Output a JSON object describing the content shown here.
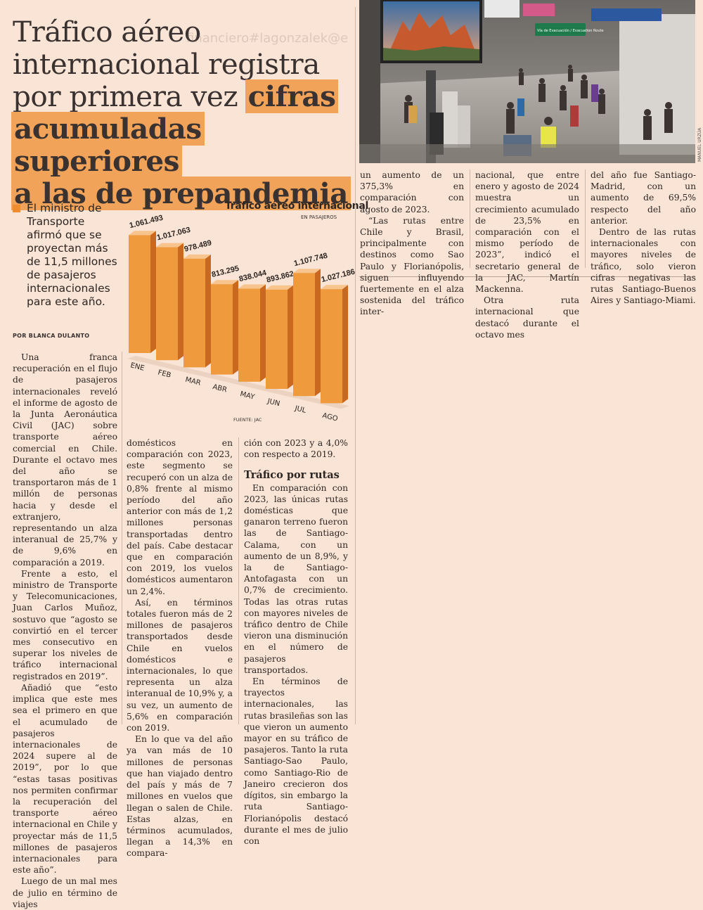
{
  "headline": {
    "plain": "Tráfico aéreo internacional registra por primera vez ",
    "highlight_1": "cifras",
    "highlight_2": "acumuladas superiores",
    "highlight_3": "a las de prepandemia"
  },
  "watermark": "financiero#lagonzalek@e",
  "summary": "El ministro de Transporte afirmó que se proyectan más de 11,5 millones de pasajeros internacionales para este año.",
  "byline": "POR BLANCA DULANTO",
  "photo_credit": "MANUEL URZÚA",
  "photo_signs": [
    "Vía de Evacuación / Evacuation Route"
  ],
  "chart_data": {
    "type": "bar",
    "title": "Tráfico aéreo internacional",
    "subtitle": "EN PASAJEROS",
    "source": "FUENTE: JAC",
    "categories": [
      "ENE",
      "FEB",
      "MAR",
      "ABR",
      "MAY",
      "JUN",
      "JUL",
      "AGO"
    ],
    "values": [
      1061493,
      1017063,
      978489,
      813295,
      838044,
      893862,
      1107748,
      1027186
    ],
    "value_labels": [
      "1.061.493",
      "1.017.063",
      "978.489",
      "813.295",
      "838.044",
      "893.862",
      "1.107.748",
      "1.027.186"
    ],
    "bar_color": "#f09a3e"
  },
  "column1": [
    "Una franca recuperación en el flujo de pasajeros internacionales reveló el informe de agosto de la Junta Aeronáutica Civil (JAC) sobre transporte aéreo comercial en Chile. Durante el octavo mes del año se transportaron más de 1 millón de personas hacia y desde el extranjero, representando un alza interanual de 25,7% y de 9,6% en comparación a 2019.",
    "Frente a esto, el ministro de Transporte y Telecomunicaciones, Juan Carlos Muñoz, sostuvo que “agosto se convirtió en el tercer mes consecutivo en superar los niveles de tráfico internacional registrados en 2019”.",
    "Añadió que “esto implica que este mes sea el primero en que el acumulado de pasajeros internacionales de 2024 supere al de 2019”, por lo que “estas tasas positivas nos permiten confirmar la recuperación del transporte aéreo internacional en Chile y proyectar más de 11,5 millones de pasajeros internacionales para este año”.",
    "Luego de un mal mes de julio en término de viajes"
  ],
  "column2": [
    "domésticos en comparación con 2023, este segmento se recuperó con un alza de 0,8% frente al mismo período del año anterior con más de 1,2 millones personas transportadas dentro del país. Cabe destacar que en comparación con 2019, los vuelos domésticos aumentaron un 2,4%.",
    "Así, en términos totales fueron más de 2 millones de pasajeros transportados desde Chile en vuelos domésticos e internacionales, lo que representa un alza interanual de 10,9% y, a su vez, un aumento de 5,6% en comparación con 2019.",
    "En lo que va del año ya van más de 10 millones de personas que han viajado dentro del país y más de 7 millones en vuelos que llegan o salen de Chile. Estas alzas, en términos acumulados, llegan a 14,3% en compara-"
  ],
  "column3": {
    "lead": "ción con 2023 y a 4,0% con respecto a 2019.",
    "subheading": "Tráfico por rutas",
    "paragraphs": [
      "En comparación con 2023, las únicas rutas domésticas que ganaron terreno fueron las de Santiago-Calama, con un aumento de un 8,9%, y la de Santiago-Antofagasta con un 0,7% de crecimiento. Todas las otras rutas con mayores niveles de tráfico dentro de Chile vieron una disminución en el número de pasajeros transportados.",
      "En términos de trayectos internacionales, las rutas brasileñas son las que vieron un aumento mayor en su tráfico de pasajeros. Tanto la ruta Santiago-Sao Paulo, como Santiago-Rio de Janeiro crecieron dos dígitos, sin embargo la ruta Santiago-Florianópolis destacó durante el mes de julio con"
    ]
  },
  "column4": [
    "un aumento de un 375,3% en comparación con agosto de 2023.",
    "“Las rutas entre Chile y Brasil, principalmente con destinos como Sao Paulo y Florianópolis, siguen influyendo fuertemente en el alza sostenida del tráfico inter-"
  ],
  "column5": [
    "nacional, que entre enero y agosto de 2024 muestra un crecimiento acumulado de 23,5% en comparación con el mismo período de 2023”, indicó el secretario general de la JAC, Martín Mackenna.",
    "Otra ruta internacional que destacó durante el octavo mes"
  ],
  "column6": [
    "del año fue Santiago-Madrid, con un aumento de 69,5% respecto del año anterior.",
    "Dentro de las rutas internacionales con mayores niveles de tráfico, solo vieron cifras negativas las rutas Santiago-Buenos Aires y Santiago-Miami."
  ]
}
